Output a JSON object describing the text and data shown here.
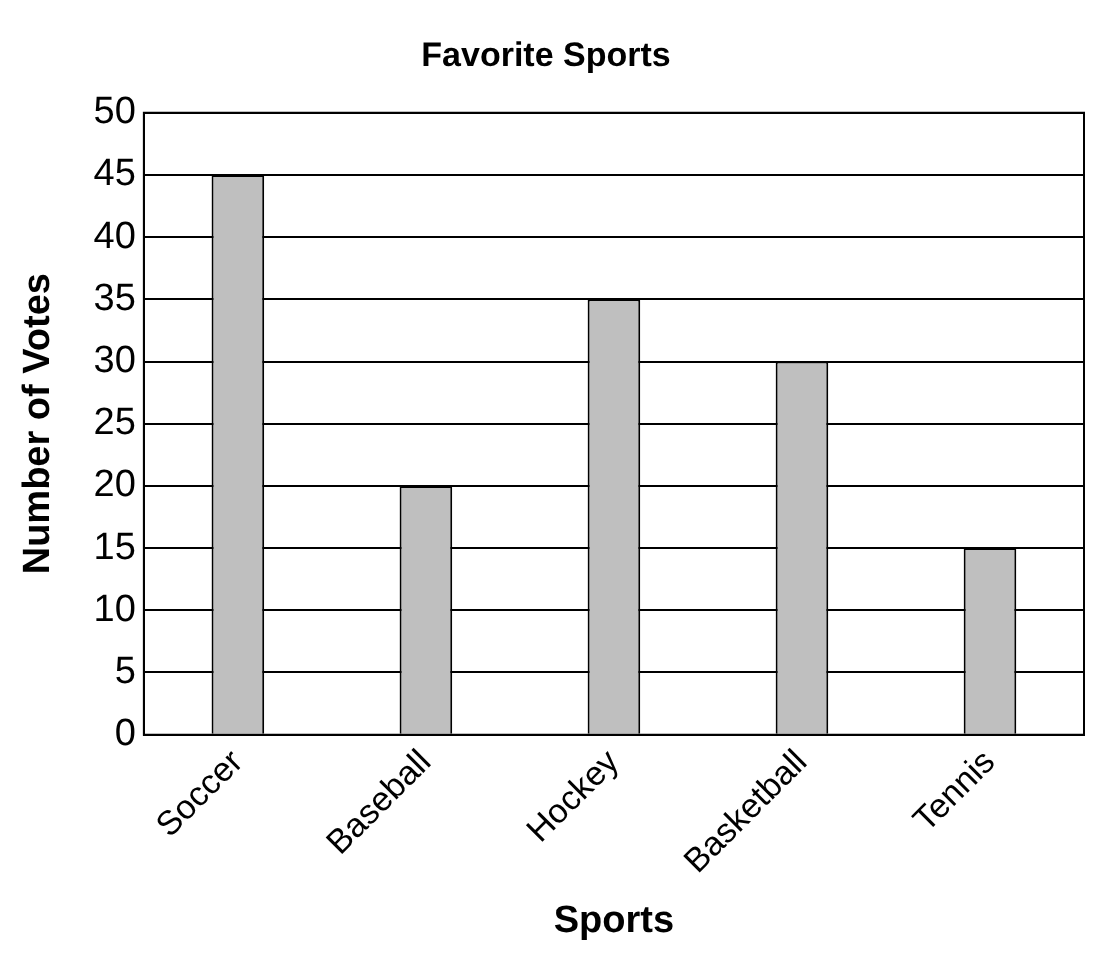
{
  "chart_data": {
    "type": "bar",
    "title": "Favorite Sports",
    "xlabel": "Sports",
    "ylabel": "Number of Votes",
    "categories": [
      "Soccer",
      "Baseball",
      "Hockey",
      "Basketball",
      "Tennis"
    ],
    "values": [
      45,
      20,
      35,
      30,
      15
    ],
    "color": "#bfbfbf",
    "ylim": [
      0,
      50
    ],
    "yticks": [
      0,
      5,
      10,
      15,
      20,
      25,
      30,
      35,
      40,
      45,
      50
    ],
    "grid": "y",
    "legend": false
  }
}
